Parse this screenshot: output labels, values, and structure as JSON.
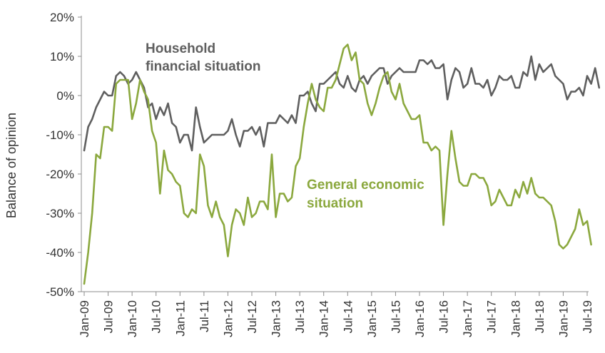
{
  "chart_data": {
    "type": "line",
    "ylabel": "Balance of opinion",
    "xlabel": "",
    "ylim": [
      -50,
      20
    ],
    "yticks": [
      {
        "value": 20,
        "label": "20%"
      },
      {
        "value": 10,
        "label": "10%"
      },
      {
        "value": 0,
        "label": "0%"
      },
      {
        "value": -10,
        "label": "-10%"
      },
      {
        "value": -20,
        "label": "-20%"
      },
      {
        "value": -30,
        "label": "-30%"
      },
      {
        "value": -40,
        "label": "-40%"
      },
      {
        "value": -50,
        "label": "-50%"
      }
    ],
    "xticks": [
      "Jan-09",
      "Jul-09",
      "Jan-10",
      "Jul-10",
      "Jan-11",
      "Jul-11",
      "Jan-12",
      "Jul-12",
      "Jan-13",
      "Jul-13",
      "Jan-14",
      "Jul-14",
      "Jan-15",
      "Jul-15",
      "Jan-16",
      "Jul-16",
      "Jan-17",
      "Jul-17",
      "Jan-18",
      "Jul-18",
      "Jan-19",
      "Jul-19"
    ],
    "x_start": "2009-01",
    "grid": false,
    "series": [
      {
        "name": "Household financial situation",
        "color": "#5f5f5f",
        "values": [
          -14,
          -8,
          -6,
          -3,
          -1,
          1,
          0,
          0,
          5,
          6,
          5,
          3,
          4,
          6,
          4,
          2,
          -3,
          -2,
          -6,
          -3,
          -5,
          -2,
          -7,
          -8,
          -12,
          -10,
          -10,
          -14,
          -3,
          -8,
          -12,
          -11,
          -10,
          -10,
          -10,
          -10,
          -9,
          -6,
          -10,
          -13,
          -9,
          -9,
          -8,
          -10,
          -8,
          -13,
          -7,
          -7,
          -7,
          -5,
          -6,
          -7,
          -5,
          -7,
          0,
          0,
          1,
          -2,
          -4,
          3,
          3,
          4,
          5,
          6,
          3,
          2,
          5,
          2,
          1,
          4,
          5,
          3,
          5,
          6,
          7,
          7,
          3,
          5,
          6,
          7,
          6,
          6,
          6,
          6,
          9,
          9,
          8,
          9,
          7,
          7,
          8,
          -1,
          4,
          7,
          6,
          2,
          3,
          7,
          3,
          3,
          2,
          4,
          0,
          2,
          5,
          4,
          4,
          5,
          2,
          2,
          6,
          5,
          10,
          4,
          8,
          6,
          7,
          8,
          5,
          4,
          3,
          -1,
          1,
          1,
          2,
          0,
          5,
          3,
          7,
          2
        ],
        "label_lines": [
          "Household",
          "financial situation"
        ]
      },
      {
        "name": "General economic situation",
        "color": "#8ba83e",
        "values": [
          -48,
          -40,
          -30,
          -15,
          -16,
          -8,
          -8,
          -9,
          3,
          4,
          4,
          4,
          -6,
          -2,
          4,
          1,
          -1,
          -9,
          -12,
          -25,
          -14,
          -19,
          -20,
          -22,
          -23,
          -30,
          -31,
          -29,
          -30,
          -15,
          -18,
          -28,
          -31,
          -27,
          -31,
          -33,
          -41,
          -33,
          -29,
          -30,
          -33,
          -26,
          -31,
          -30,
          -27,
          -27,
          -29,
          -15,
          -31,
          -25,
          -25,
          -27,
          -26,
          -18,
          -16,
          -8,
          -2,
          3,
          -1,
          -3,
          -4,
          2,
          2,
          4,
          8,
          12,
          13,
          9,
          11,
          4,
          3,
          -2,
          -5,
          -2,
          2,
          5,
          6,
          1,
          -1,
          3,
          -2,
          -4,
          -6,
          -6,
          -5,
          -12,
          -12,
          -14,
          -13,
          -14,
          -33,
          -20,
          -9,
          -16,
          -22,
          -23,
          -23,
          -20,
          -20,
          -21,
          -21,
          -23,
          -28,
          -27,
          -24,
          -26,
          -28,
          -28,
          -24,
          -26,
          -22,
          -25,
          -21,
          -25,
          -26,
          -26,
          -27,
          -28,
          -32,
          -38,
          -39,
          -38,
          -36,
          -34,
          -29,
          -33,
          -32,
          -38
        ],
        "label_lines": [
          "General economic",
          "situation"
        ]
      }
    ]
  }
}
